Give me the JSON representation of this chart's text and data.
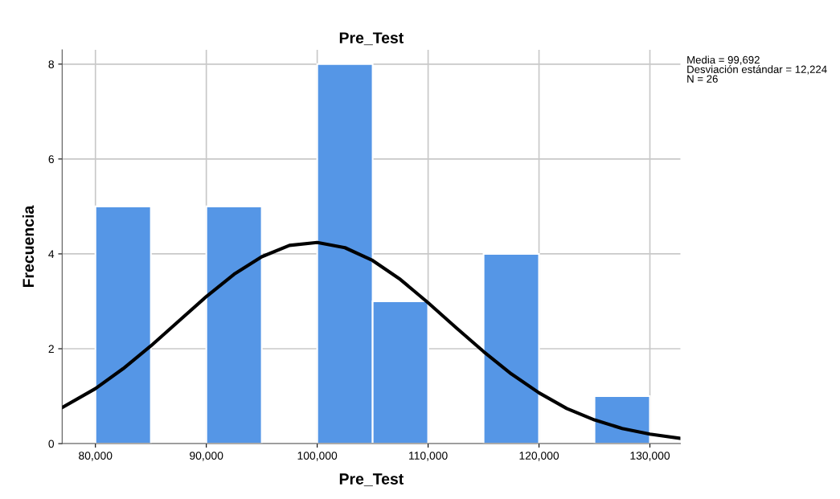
{
  "chart_data": {
    "type": "histogram",
    "title": "Pre_Test",
    "xlabel": "Pre_Test",
    "ylabel": "Frecuencia",
    "bins": [
      80000,
      85000,
      90000,
      95000,
      100000,
      105000,
      110000,
      115000,
      120000,
      125000,
      130000
    ],
    "values": [
      5,
      0,
      5,
      0,
      8,
      3,
      0,
      4,
      0,
      1
    ],
    "color": "#5596e6",
    "series": [
      {
        "type": "line",
        "color": "#000000",
        "x": [
          77000,
          80000,
          82500,
          85000,
          87500,
          90000,
          92500,
          95000,
          97500,
          100000,
          102500,
          105000,
          107500,
          110000,
          112500,
          115000,
          117500,
          120000,
          122500,
          125000,
          127500,
          130000,
          132750
        ],
        "values": [
          0.76,
          1.16,
          1.58,
          2.06,
          2.58,
          3.1,
          3.57,
          3.94,
          4.18,
          4.24,
          4.13,
          3.86,
          3.46,
          2.97,
          2.45,
          1.94,
          1.47,
          1.07,
          0.74,
          0.5,
          0.32,
          0.2,
          0.11
        ]
      }
    ],
    "xlim": [
      77000,
      132750
    ],
    "ylim": [
      0,
      8.3
    ],
    "xticks": [
      {
        "value": 80000,
        "label": "80,000"
      },
      {
        "value": 90000,
        "label": "90,000"
      },
      {
        "value": 100000,
        "label": "100,000"
      },
      {
        "value": 110000,
        "label": "110,000"
      },
      {
        "value": 120000,
        "label": "120,000"
      },
      {
        "value": 130000,
        "label": "130,000"
      }
    ],
    "yticks": [
      0,
      2,
      4,
      6,
      8
    ],
    "grid": true,
    "annotations": [
      "Media = 99,692\nDesviación estándar = 12,224\nN = 26"
    ]
  }
}
